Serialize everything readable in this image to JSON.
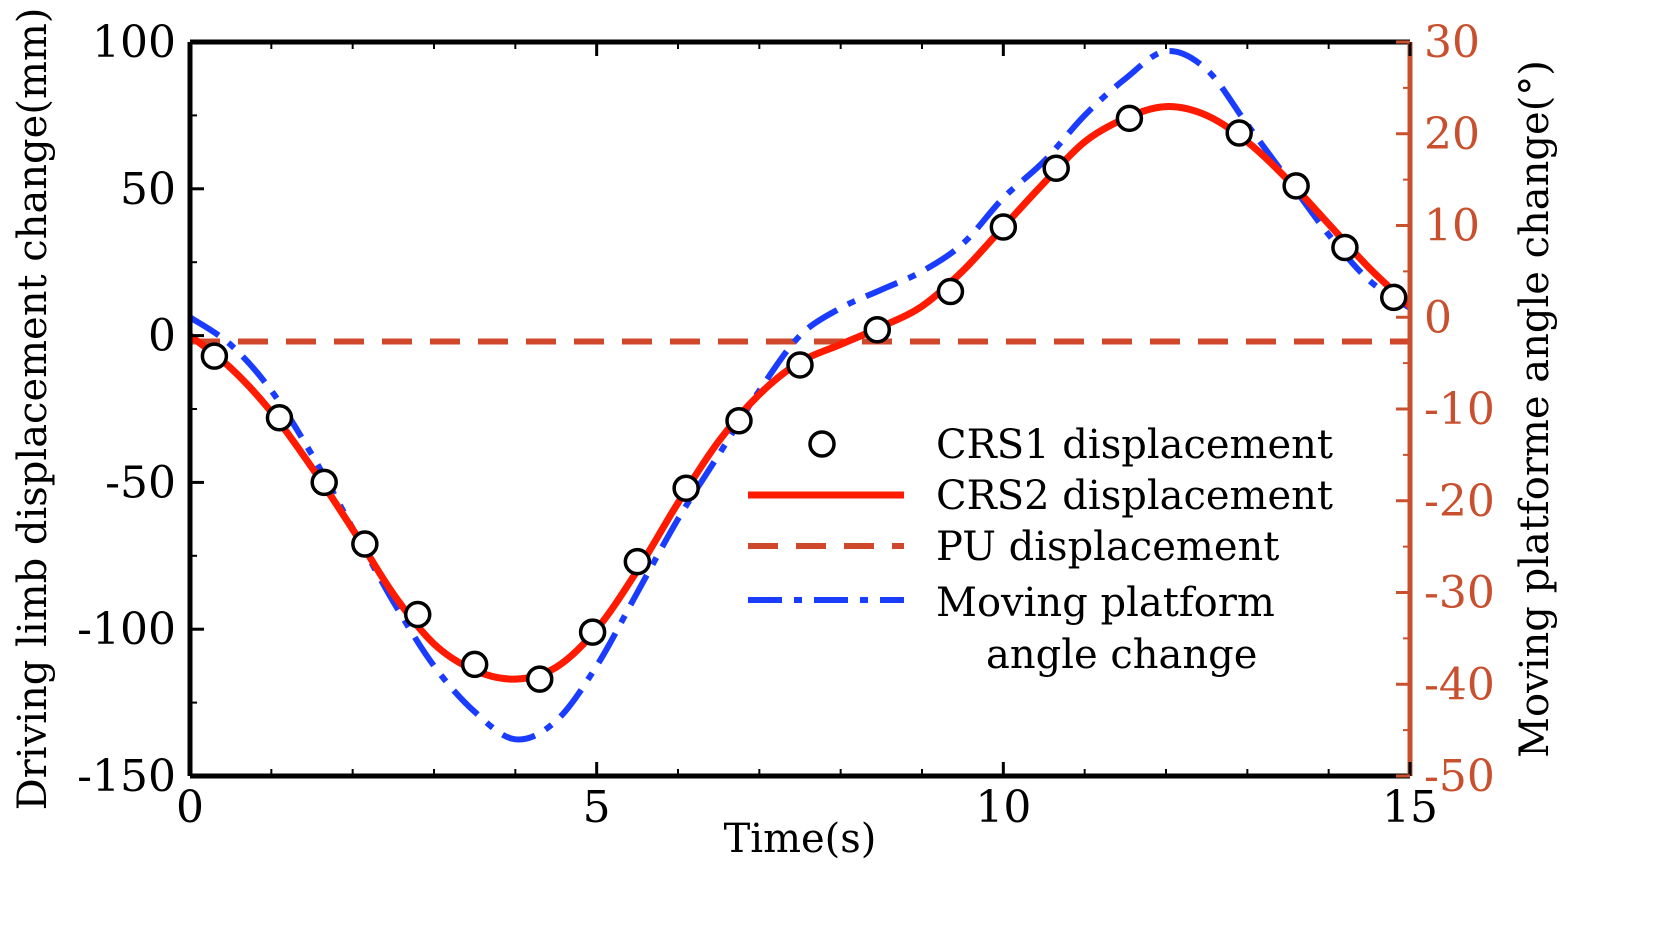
{
  "chart_data": {
    "type": "line",
    "xlabel": "Time(s)",
    "ylabel_left": "Driving limb displacement change(mm)",
    "ylabel_right": "Moving platforme angle change(°)",
    "xlim": [
      0,
      15
    ],
    "ylim_left": [
      -150,
      100
    ],
    "ylim_right": [
      -50,
      30
    ],
    "x_ticks": [
      "0",
      "5",
      "10",
      "15"
    ],
    "y_left_ticks": [
      "100",
      "50",
      "0",
      "-50",
      "-100",
      "-150"
    ],
    "y_right_ticks": [
      "30",
      "20",
      "10",
      "0",
      "-10",
      "-20",
      "-30",
      "-40",
      "-50"
    ],
    "grid": false,
    "legend_position": "center-right",
    "colors": {
      "crs1": "#000000",
      "crs2": "#ff1a00",
      "pu": "#d0482b",
      "platform": "#1a3cff",
      "right_axis": "#c8502e"
    },
    "legend": [
      {
        "key": "crs1",
        "label": "CRS1  displacement",
        "style": "marker"
      },
      {
        "key": "crs2",
        "label": "CRS2  displacement",
        "style": "solid"
      },
      {
        "key": "pu",
        "label": "PU   displacement",
        "style": "dashed"
      },
      {
        "key": "platform",
        "label": "Moving  platform",
        "label2": "angle  change",
        "style": "dashdot"
      }
    ],
    "series": [
      {
        "key": "crs1",
        "name": "CRS1 displacement",
        "axis": "left",
        "x": [
          0.3,
          1.1,
          1.65,
          2.15,
          2.8,
          3.5,
          4.3,
          4.95,
          5.5,
          6.1,
          6.75,
          7.5,
          8.45,
          9.35,
          10.0,
          10.65,
          11.55,
          12.9,
          13.6,
          14.2,
          14.8
        ],
        "y": [
          -7,
          -28,
          -50,
          -71,
          -95,
          -112,
          -117,
          -101,
          -77,
          -52,
          -29,
          -10,
          2,
          15,
          37,
          57,
          74,
          69,
          51,
          30,
          13
        ]
      },
      {
        "key": "crs2",
        "name": "CRS2 displacement",
        "axis": "left",
        "x": [
          0,
          0.5,
          1.0,
          1.5,
          2.0,
          2.5,
          3.0,
          3.5,
          4.0,
          4.5,
          5.0,
          5.5,
          6.0,
          6.5,
          7.0,
          7.5,
          8.0,
          8.5,
          9.0,
          9.5,
          10.0,
          10.5,
          11.0,
          11.5,
          12.0,
          12.5,
          13.0,
          13.5,
          14.0,
          14.5,
          15.0
        ],
        "y": [
          0,
          -11,
          -26,
          -45,
          -66,
          -88,
          -105,
          -114,
          -117,
          -113,
          -100,
          -80,
          -57,
          -36,
          -20,
          -9,
          -3,
          3,
          10,
          22,
          37,
          52,
          66,
          74,
          78,
          75,
          66,
          53,
          38,
          23,
          10
        ]
      },
      {
        "key": "pu",
        "name": "PU displacement",
        "axis": "left",
        "x": [
          0,
          15
        ],
        "y": [
          -2,
          -2
        ]
      },
      {
        "key": "platform",
        "name": "Moving platform angle change",
        "axis": "right",
        "x": [
          0,
          0.5,
          1.0,
          1.5,
          2.0,
          2.5,
          3.0,
          3.5,
          4.0,
          4.5,
          5.0,
          5.5,
          6.0,
          6.5,
          7.0,
          7.5,
          8.0,
          8.5,
          9.0,
          9.5,
          10.0,
          10.5,
          11.0,
          11.5,
          12.0,
          12.5,
          13.0,
          13.5,
          14.0,
          14.5,
          15.0
        ],
        "y": [
          0,
          -3,
          -8,
          -15,
          -23,
          -31,
          -38,
          -43,
          -46,
          -44,
          -38,
          -30,
          -22,
          -15,
          -8,
          -2,
          1,
          3,
          5,
          8,
          13,
          17,
          22,
          26,
          29,
          27,
          21,
          15,
          9,
          4,
          1
        ]
      }
    ]
  }
}
